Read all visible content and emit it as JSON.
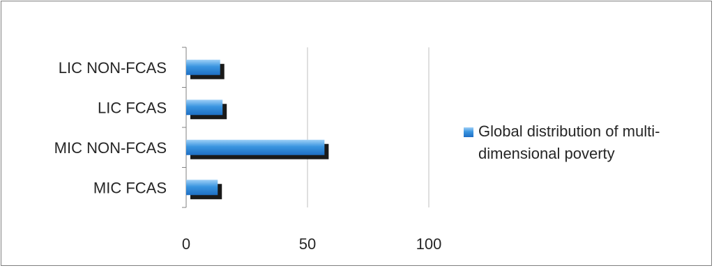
{
  "chart_data": {
    "type": "bar",
    "orientation": "horizontal",
    "title": "",
    "xlabel": "",
    "ylabel": "",
    "categories": [
      "MIC FCAS",
      "MIC NON-FCAS",
      "LIC FCAS",
      "LIC NON-FCAS"
    ],
    "series": [
      {
        "name": "Global distribution of multi-dimensional poverty",
        "legend_lines": [
          "Global distribution of multi-",
          "dimensional poverty"
        ],
        "values": [
          13,
          57,
          15,
          14
        ],
        "color": "#2e86d9"
      }
    ],
    "xlim": [
      0,
      100
    ],
    "x_ticks": [
      "0",
      "50",
      "100"
    ],
    "grid": "vertical",
    "legend": "right",
    "style": {
      "bar_shadow": true,
      "shadow_color": "#1a1a1a",
      "gridline_color": "#bfbfbf",
      "axis_color": "#808080"
    }
  }
}
